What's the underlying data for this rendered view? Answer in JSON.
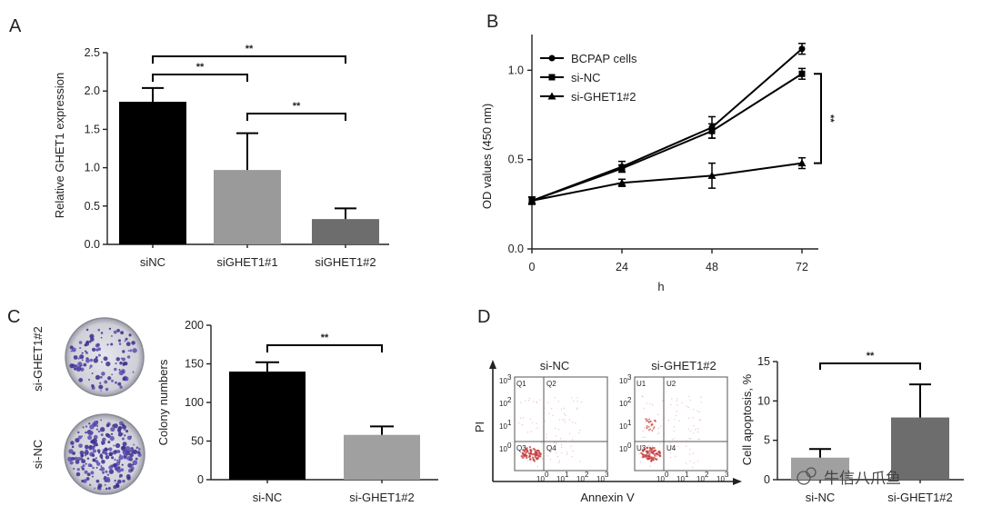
{
  "chart_data": [
    {
      "panel": "A",
      "type": "bar",
      "categories": [
        "siNC",
        "siGHET1#1",
        "siGHET1#2"
      ],
      "values": [
        1.86,
        0.97,
        0.33
      ],
      "errors": [
        0.18,
        0.48,
        0.14
      ],
      "colors": [
        "#000000",
        "#9a9a9a",
        "#6d6d6d"
      ],
      "ylabel": "Relative GHET1 expression",
      "ylim": [
        0,
        2.5
      ],
      "yticks": [
        "0.0",
        "0.5",
        "1.0",
        "1.5",
        "2.0",
        "2.5"
      ],
      "significance": [
        {
          "from": 0,
          "to": 1,
          "label": "**"
        },
        {
          "from": 0,
          "to": 2,
          "label": "**"
        },
        {
          "from": 1,
          "to": 2,
          "label": "**"
        }
      ]
    },
    {
      "panel": "B",
      "type": "line",
      "x": [
        0,
        24,
        48,
        72
      ],
      "xlabel": "h",
      "ylabel": "OD values (450 nm)",
      "ylim": [
        0,
        1.2
      ],
      "yticks": [
        "0.0",
        "0.5",
        "1.0"
      ],
      "xticks": [
        "0",
        "24",
        "48",
        "72"
      ],
      "series": [
        {
          "name": "BCPAP cells",
          "marker": "circle",
          "values": [
            0.27,
            0.46,
            0.68,
            1.12
          ],
          "errors": [
            0.02,
            0.03,
            0.06,
            0.03
          ]
        },
        {
          "name": "si-NC",
          "marker": "square",
          "values": [
            0.27,
            0.45,
            0.66,
            0.98
          ],
          "errors": [
            0.02,
            0.02,
            0.04,
            0.03
          ]
        },
        {
          "name": "si-GHET1#2",
          "marker": "triangle",
          "values": [
            0.27,
            0.37,
            0.41,
            0.48
          ],
          "errors": [
            0.02,
            0.02,
            0.07,
            0.03
          ]
        }
      ],
      "significance": [
        {
          "label": "**"
        }
      ]
    },
    {
      "panel": "C",
      "type": "bar",
      "categories": [
        "si-NC",
        "si-GHET1#2"
      ],
      "values": [
        140,
        58
      ],
      "errors": [
        12,
        11
      ],
      "colors": [
        "#000000",
        "#a0a0a0"
      ],
      "ylabel": "Colony numbers",
      "ylim": [
        0,
        200
      ],
      "yticks": [
        "0",
        "50",
        "100",
        "150",
        "200"
      ],
      "significance": [
        {
          "from": 0,
          "to": 1,
          "label": "**"
        }
      ]
    },
    {
      "panel": "D",
      "type": "bar",
      "categories": [
        "si-NC",
        "si-GHET1#2"
      ],
      "values": [
        2.8,
        7.9
      ],
      "errors": [
        1.1,
        4.2
      ],
      "colors": [
        "#a0a0a0",
        "#6d6d6d"
      ],
      "ylabel": "Cell apoptosis, %",
      "ylim": [
        0,
        15
      ],
      "yticks": [
        "0",
        "5",
        "10",
        "15"
      ],
      "significance": [
        {
          "from": 0,
          "to": 1,
          "label": "**"
        }
      ]
    }
  ],
  "panels": {
    "a": "A",
    "b": "B",
    "c": "C",
    "d": "D"
  },
  "colony_images": {
    "top_label": "si-GHET1#2",
    "bottom_label": "si-NC"
  },
  "flow": {
    "y_axis": "PI",
    "x_axis": "Annexin V",
    "plot1": {
      "title": "si-NC",
      "quadrants": [
        "Q1",
        "Q2",
        "Q3",
        "Q4"
      ]
    },
    "plot2": {
      "title": "si-GHET1#2",
      "quadrants": [
        "U1",
        "U2",
        "U3",
        "U4"
      ]
    },
    "tick_labels": [
      "10",
      "10",
      "10",
      "10"
    ],
    "tick_exponents": [
      "0",
      "1",
      "2",
      "3"
    ]
  },
  "watermark": "牛信八爪鱼"
}
